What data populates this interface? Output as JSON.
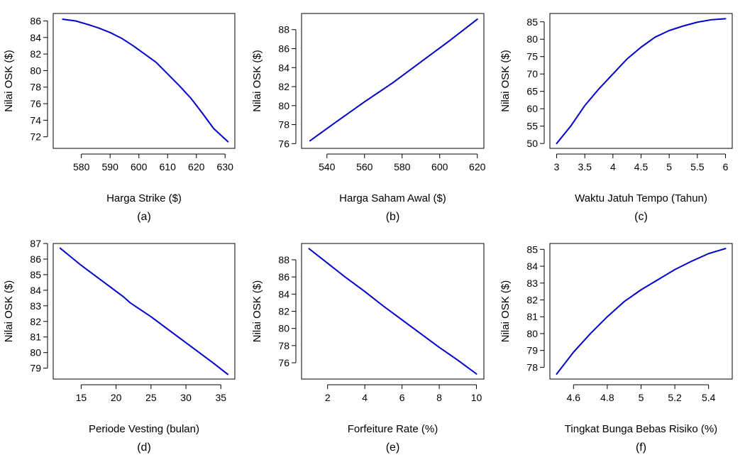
{
  "chart_data": [
    {
      "type": "line",
      "panel_label": "(a)",
      "xlabel": "Harga Strike ($)",
      "ylabel": "Nilai OSK ($)",
      "xticks": [
        580,
        590,
        600,
        610,
        620,
        630
      ],
      "yticks": [
        72,
        74,
        76,
        78,
        80,
        82,
        84,
        86
      ],
      "xlim": [
        570.2,
        633.4
      ],
      "ylim": [
        70.6,
        86.9
      ],
      "line_color": "#0000CC",
      "x": [
        573.5,
        578,
        582,
        586,
        590,
        594,
        598,
        602,
        606,
        610,
        614,
        618,
        622,
        626,
        631
      ],
      "y": [
        86.2,
        86.0,
        85.6,
        85.15,
        84.6,
        83.9,
        83.0,
        82.0,
        81.0,
        79.6,
        78.2,
        76.7,
        74.9,
        73.0,
        71.4
      ]
    },
    {
      "type": "line",
      "panel_label": "(b)",
      "xlabel": "Harga Saham Awal ($)",
      "ylabel": "Nilai OSK ($)",
      "xticks": [
        540,
        560,
        580,
        600,
        620
      ],
      "yticks": [
        76,
        78,
        80,
        82,
        84,
        86,
        88
      ],
      "xlim": [
        526.5,
        623.5
      ],
      "ylim": [
        75.5,
        89.7
      ],
      "line_color": "#0000CC",
      "x": [
        531,
        545,
        560,
        575,
        590,
        605,
        620
      ],
      "y": [
        76.3,
        78.3,
        80.4,
        82.4,
        84.6,
        86.8,
        89.1
      ]
    },
    {
      "type": "line",
      "panel_label": "(c)",
      "xlabel": "Waktu Jatuh Tempo (Tahun)",
      "ylabel": "Nilai OSK ($)",
      "xticks": [
        3.0,
        3.5,
        4.0,
        4.5,
        5.0,
        5.5,
        6.0
      ],
      "yticks": [
        50,
        55,
        60,
        65,
        70,
        75,
        80,
        85
      ],
      "xlim": [
        2.88,
        6.12
      ],
      "ylim": [
        48.6,
        87.4
      ],
      "line_color": "#0000CC",
      "x": [
        3.0,
        3.25,
        3.5,
        3.75,
        4.0,
        4.25,
        4.5,
        4.75,
        5.0,
        5.25,
        5.5,
        5.75,
        6.0
      ],
      "y": [
        50.0,
        55.0,
        60.9,
        65.7,
        70.0,
        74.3,
        77.7,
        80.6,
        82.5,
        83.8,
        84.9,
        85.6,
        85.9
      ]
    },
    {
      "type": "line",
      "panel_label": "(d)",
      "xlabel": "Periode Vesting (bulan)",
      "ylabel": "Nilai OSK ($)",
      "xticks": [
        15,
        20,
        25,
        30,
        35
      ],
      "yticks": [
        79,
        80,
        81,
        82,
        83,
        84,
        85,
        86,
        87
      ],
      "xlim": [
        11.0,
        37.0
      ],
      "ylim": [
        78.3,
        87.0
      ],
      "line_color": "#0000CC",
      "x": [
        12,
        15,
        18,
        21,
        22,
        25,
        28,
        31,
        34,
        36
      ],
      "y": [
        86.7,
        85.6,
        84.6,
        83.6,
        83.2,
        82.3,
        81.3,
        80.3,
        79.3,
        78.6
      ]
    },
    {
      "type": "line",
      "panel_label": "(e)",
      "xlabel": "Forfeiture Rate (%)",
      "ylabel": "Nilai OSK ($)",
      "xticks": [
        2,
        4,
        6,
        8,
        10
      ],
      "yticks": [
        76,
        78,
        80,
        82,
        84,
        86,
        88
      ],
      "xlim": [
        0.6,
        10.4
      ],
      "ylim": [
        74.1,
        89.9
      ],
      "line_color": "#0000CC",
      "x": [
        1,
        2,
        3,
        4,
        5,
        6,
        7,
        8,
        9,
        10
      ],
      "y": [
        89.3,
        87.6,
        85.9,
        84.3,
        82.6,
        81.0,
        79.4,
        77.8,
        76.3,
        74.7
      ]
    },
    {
      "type": "line",
      "panel_label": "(f)",
      "xlabel": "Tingkat Bunga Bebas Risiko (%)",
      "ylabel": "Nilai OSK ($)",
      "xticks": [
        4.6,
        4.8,
        5.0,
        5.2,
        5.4
      ],
      "yticks": [
        78,
        79,
        80,
        81,
        82,
        83,
        84,
        85
      ],
      "xlim": [
        4.46,
        5.54
      ],
      "ylim": [
        77.3,
        85.35
      ],
      "line_color": "#0000CC",
      "x": [
        4.5,
        4.6,
        4.7,
        4.8,
        4.9,
        5.0,
        5.1,
        5.2,
        5.3,
        5.4,
        5.5
      ],
      "y": [
        77.6,
        78.9,
        80.0,
        81.0,
        81.9,
        82.6,
        83.2,
        83.8,
        84.3,
        84.75,
        85.05
      ]
    }
  ]
}
